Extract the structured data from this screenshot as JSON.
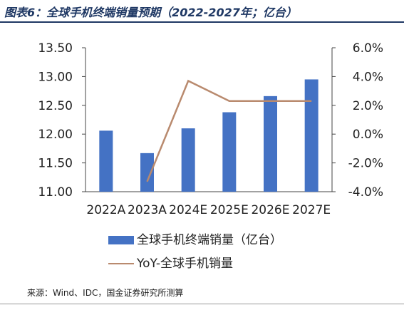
{
  "figure": {
    "title": "图表6：全球手机终端销量预期（2022-2027年；亿台）",
    "source": "来源：Wind、IDC，国金证券研究所测算"
  },
  "colors": {
    "bar": "#4472c4",
    "line": "#b98a6e",
    "title": "#1f3864"
  },
  "chart_data": {
    "type": "bar",
    "categories": [
      "2022A",
      "2023A",
      "2024E",
      "2025E",
      "2026E",
      "2027E"
    ],
    "series": [
      {
        "name": "全球手机终端销量（亿台）",
        "type": "bar",
        "axis": "left",
        "values": [
          12.06,
          11.67,
          12.1,
          12.38,
          12.66,
          12.95
        ]
      },
      {
        "name": "YoY-全球手机销量",
        "type": "line",
        "axis": "right",
        "values": [
          null,
          -3.3,
          3.7,
          2.3,
          2.3,
          2.3
        ]
      }
    ],
    "y_left": {
      "min": 11.0,
      "max": 13.5,
      "ticks": [
        "11.00",
        "11.50",
        "12.00",
        "12.50",
        "13.00",
        "13.50"
      ]
    },
    "y_right": {
      "min": -4.0,
      "max": 6.0,
      "ticks": [
        "-4.0%",
        "-2.0%",
        "0.0%",
        "2.0%",
        "4.0%",
        "6.0%"
      ]
    },
    "grid": false,
    "legend_position": "bottom"
  }
}
